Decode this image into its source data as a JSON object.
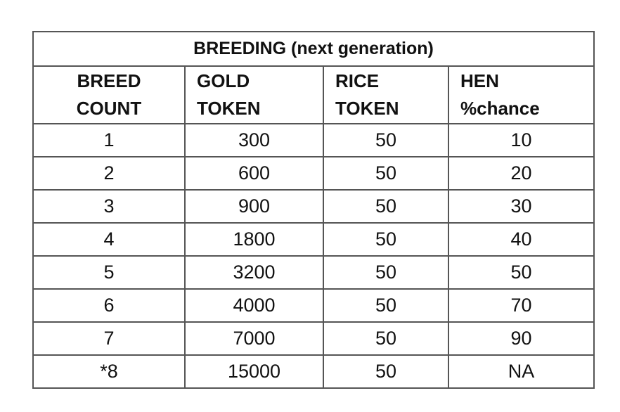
{
  "table": {
    "title": "BREEDING (next generation)",
    "headers": [
      {
        "line1": "BREED",
        "line2": "COUNT"
      },
      {
        "line1": "GOLD",
        "line2": "TOKEN"
      },
      {
        "line1": "RICE",
        "line2": "TOKEN"
      },
      {
        "line1": "HEN",
        "line2": "%chance"
      }
    ],
    "rows": [
      [
        "1",
        "300",
        "50",
        "10"
      ],
      [
        "2",
        "600",
        "50",
        "20"
      ],
      [
        "3",
        "900",
        "50",
        "30"
      ],
      [
        "4",
        "1800",
        "50",
        "40"
      ],
      [
        "5",
        "3200",
        "50",
        "50"
      ],
      [
        "6",
        "4000",
        "50",
        "70"
      ],
      [
        "7",
        "7000",
        "50",
        "90"
      ],
      [
        "*8",
        "15000",
        "50",
        "NA"
      ]
    ]
  }
}
